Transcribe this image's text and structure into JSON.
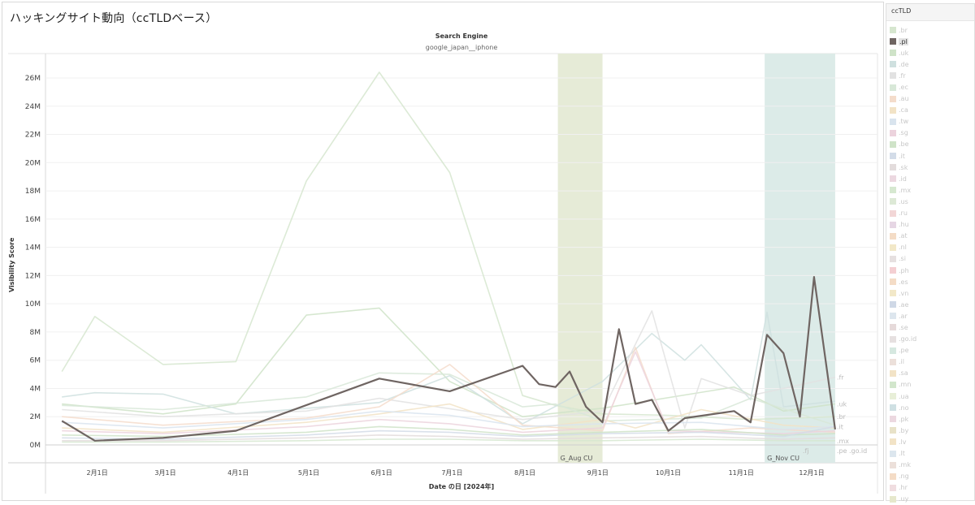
{
  "page": {
    "title": "ハッキングサイト動向（ccTLDベース）"
  },
  "chart_data": {
    "type": "line",
    "header_label": "Search Engine",
    "header_value": "google_japan__iphone",
    "xlabel": "Date の日 [2024年]",
    "ylabel": "Visibility Score",
    "ylim": [
      0,
      27000000
    ],
    "yticks": [
      0,
      2000000,
      4000000,
      6000000,
      8000000,
      10000000,
      12000000,
      14000000,
      16000000,
      18000000,
      20000000,
      22000000,
      24000000,
      26000000
    ],
    "ytick_labels": [
      "0M",
      "2M",
      "4M",
      "6M",
      "8M",
      "10M",
      "12M",
      "14M",
      "16M",
      "18M",
      "20M",
      "22M",
      "24M",
      "26M"
    ],
    "x_ticks": [
      {
        "date": "2024-02-01",
        "label": "2月1日"
      },
      {
        "date": "2024-03-01",
        "label": "3月1日"
      },
      {
        "date": "2024-04-01",
        "label": "4月1日"
      },
      {
        "date": "2024-05-01",
        "label": "5月1日"
      },
      {
        "date": "2024-06-01",
        "label": "6月1日"
      },
      {
        "date": "2024-07-01",
        "label": "7月1日"
      },
      {
        "date": "2024-08-01",
        "label": "8月1日"
      },
      {
        "date": "2024-09-01",
        "label": "9月1日"
      },
      {
        "date": "2024-10-01",
        "label": "10月1日"
      },
      {
        "date": "2024-11-01",
        "label": "11月1日"
      },
      {
        "date": "2024-12-01",
        "label": "12月1日"
      }
    ],
    "xlim": [
      "2024-01-10",
      "2024-12-29"
    ],
    "bands": [
      {
        "label": "G_Aug CU",
        "start": "2024-08-15",
        "end": "2024-09-03",
        "color": "#e6ebd7"
      },
      {
        "label": "G_Nov CU",
        "start": "2024-11-11",
        "end": "2024-12-11",
        "color": "#dcebe8"
      }
    ],
    "highlight": ".pl",
    "series": [
      {
        "name": ".pl",
        "color": "#6f6562",
        "points": [
          [
            "2024-01-17",
            1700000
          ],
          [
            "2024-01-31",
            300000
          ],
          [
            "2024-02-29",
            500000
          ],
          [
            "2024-03-31",
            1000000
          ],
          [
            "2024-05-31",
            4700000
          ],
          [
            "2024-06-30",
            3800000
          ],
          [
            "2024-07-31",
            5600000
          ],
          [
            "2024-08-07",
            4300000
          ],
          [
            "2024-08-14",
            4100000
          ],
          [
            "2024-08-20",
            5200000
          ],
          [
            "2024-08-27",
            2700000
          ],
          [
            "2024-09-03",
            1600000
          ],
          [
            "2024-09-10",
            8200000
          ],
          [
            "2024-09-17",
            2900000
          ],
          [
            "2024-09-24",
            3200000
          ],
          [
            "2024-10-01",
            1000000
          ],
          [
            "2024-10-08",
            1900000
          ],
          [
            "2024-10-29",
            2400000
          ],
          [
            "2024-11-05",
            1600000
          ],
          [
            "2024-11-12",
            7800000
          ],
          [
            "2024-11-19",
            6500000
          ],
          [
            "2024-11-26",
            2000000
          ],
          [
            "2024-12-02",
            11900000
          ],
          [
            "2024-12-11",
            1100000
          ]
        ]
      },
      {
        "name": ".br",
        "color": "#d6e6cf",
        "points": [
          [
            "2024-01-17",
            5200000
          ],
          [
            "2024-01-31",
            9100000
          ],
          [
            "2024-02-29",
            5700000
          ],
          [
            "2024-03-31",
            5900000
          ],
          [
            "2024-04-30",
            18700000
          ],
          [
            "2024-05-31",
            26400000
          ],
          [
            "2024-06-30",
            19300000
          ],
          [
            "2024-07-31",
            3500000
          ],
          [
            "2024-08-14",
            2800000
          ],
          [
            "2024-09-03",
            2200000
          ],
          [
            "2024-10-01",
            2100000
          ],
          [
            "2024-11-05",
            1800000
          ],
          [
            "2024-12-11",
            2000000
          ]
        ]
      },
      {
        "name": ".uk",
        "color": "#cfe3c8",
        "points": [
          [
            "2024-01-17",
            2900000
          ],
          [
            "2024-02-29",
            2200000
          ],
          [
            "2024-03-31",
            2900000
          ],
          [
            "2024-04-30",
            9200000
          ],
          [
            "2024-05-31",
            9700000
          ],
          [
            "2024-06-30",
            4500000
          ],
          [
            "2024-07-31",
            2000000
          ],
          [
            "2024-09-03",
            2600000
          ],
          [
            "2024-10-29",
            4100000
          ],
          [
            "2024-11-19",
            2400000
          ],
          [
            "2024-12-11",
            2900000
          ]
        ]
      },
      {
        "name": ".de",
        "color": "#cfe0df",
        "points": [
          [
            "2024-01-17",
            3400000
          ],
          [
            "2024-01-31",
            3700000
          ],
          [
            "2024-02-29",
            3600000
          ],
          [
            "2024-03-31",
            2200000
          ],
          [
            "2024-05-31",
            3000000
          ],
          [
            "2024-06-30",
            4900000
          ],
          [
            "2024-07-31",
            1500000
          ],
          [
            "2024-09-03",
            4500000
          ],
          [
            "2024-09-24",
            7900000
          ],
          [
            "2024-10-08",
            6000000
          ],
          [
            "2024-10-15",
            7100000
          ],
          [
            "2024-11-05",
            3200000
          ],
          [
            "2024-11-12",
            9400000
          ],
          [
            "2024-11-19",
            2700000
          ],
          [
            "2024-12-11",
            3100000
          ]
        ]
      },
      {
        "name": ".fr",
        "color": "#e2e2e2",
        "points": [
          [
            "2024-01-17",
            2500000
          ],
          [
            "2024-02-29",
            2000000
          ],
          [
            "2024-04-30",
            2400000
          ],
          [
            "2024-05-31",
            3300000
          ],
          [
            "2024-07-31",
            1800000
          ],
          [
            "2024-09-03",
            2400000
          ],
          [
            "2024-09-24",
            9500000
          ],
          [
            "2024-10-08",
            1200000
          ],
          [
            "2024-10-15",
            4700000
          ],
          [
            "2024-11-05",
            3500000
          ],
          [
            "2024-12-11",
            4800000
          ]
        ]
      },
      {
        "name": ".ec",
        "color": "#d8e8d8",
        "points": [
          [
            "2024-01-17",
            2800000
          ],
          [
            "2024-02-29",
            2500000
          ],
          [
            "2024-04-30",
            3400000
          ],
          [
            "2024-05-31",
            5100000
          ],
          [
            "2024-06-30",
            5000000
          ],
          [
            "2024-07-31",
            2700000
          ],
          [
            "2024-08-14",
            2900000
          ],
          [
            "2024-09-03",
            1700000
          ],
          [
            "2024-10-15",
            1900000
          ],
          [
            "2024-11-05",
            3300000
          ],
          [
            "2024-12-11",
            1400000
          ]
        ]
      },
      {
        "name": ".au",
        "color": "#f4dccb",
        "points": [
          [
            "2024-01-17",
            2000000
          ],
          [
            "2024-02-29",
            1400000
          ],
          [
            "2024-04-30",
            1900000
          ],
          [
            "2024-05-31",
            2700000
          ],
          [
            "2024-06-30",
            5700000
          ],
          [
            "2024-07-31",
            1400000
          ],
          [
            "2024-09-03",
            1000000
          ],
          [
            "2024-09-17",
            6900000
          ],
          [
            "2024-10-01",
            800000
          ],
          [
            "2024-11-05",
            1200000
          ],
          [
            "2024-12-11",
            900000
          ]
        ]
      },
      {
        "name": ".ca",
        "color": "#f2e3c6",
        "points": [
          [
            "2024-01-17",
            1200000
          ],
          [
            "2024-02-29",
            900000
          ],
          [
            "2024-04-30",
            1600000
          ],
          [
            "2024-05-31",
            2200000
          ],
          [
            "2024-06-30",
            2900000
          ],
          [
            "2024-07-31",
            1100000
          ],
          [
            "2024-09-03",
            1800000
          ],
          [
            "2024-09-17",
            1200000
          ],
          [
            "2024-10-15",
            2500000
          ],
          [
            "2024-11-19",
            1400000
          ],
          [
            "2024-12-11",
            1200000
          ]
        ]
      },
      {
        "name": ".tw",
        "color": "#d9e4ee",
        "points": [
          [
            "2024-01-17",
            1600000
          ],
          [
            "2024-02-29",
            1200000
          ],
          [
            "2024-04-30",
            1800000
          ],
          [
            "2024-05-31",
            2400000
          ],
          [
            "2024-06-30",
            2100000
          ],
          [
            "2024-07-31",
            1300000
          ],
          [
            "2024-09-03",
            1500000
          ],
          [
            "2024-10-15",
            1600000
          ],
          [
            "2024-11-19",
            1100000
          ],
          [
            "2024-12-11",
            1300000
          ]
        ]
      },
      {
        "name": ".sg",
        "color": "#ecd3dd",
        "points": [
          [
            "2024-01-17",
            1000000
          ],
          [
            "2024-02-29",
            800000
          ],
          [
            "2024-04-30",
            1300000
          ],
          [
            "2024-05-31",
            1800000
          ],
          [
            "2024-06-30",
            1500000
          ],
          [
            "2024-07-31",
            900000
          ],
          [
            "2024-09-03",
            1200000
          ],
          [
            "2024-09-17",
            6600000
          ],
          [
            "2024-10-01",
            1000000
          ],
          [
            "2024-11-19",
            800000
          ],
          [
            "2024-12-11",
            1000000
          ]
        ]
      },
      {
        "name": ".be",
        "color": "#cfe3c8",
        "points": [
          [
            "2024-01-17",
            700000
          ],
          [
            "2024-02-29",
            600000
          ],
          [
            "2024-04-30",
            900000
          ],
          [
            "2024-05-31",
            1300000
          ],
          [
            "2024-06-30",
            1100000
          ],
          [
            "2024-07-31",
            700000
          ],
          [
            "2024-09-03",
            900000
          ],
          [
            "2024-10-15",
            1100000
          ],
          [
            "2024-11-19",
            700000
          ],
          [
            "2024-12-11",
            800000
          ]
        ]
      },
      {
        "name": ".it",
        "color": "#d3dce8",
        "points": [
          [
            "2024-01-17",
            500000
          ],
          [
            "2024-02-29",
            400000
          ],
          [
            "2024-04-30",
            700000
          ],
          [
            "2024-05-31",
            1000000
          ],
          [
            "2024-06-30",
            900000
          ],
          [
            "2024-07-31",
            600000
          ],
          [
            "2024-09-03",
            800000
          ],
          [
            "2024-10-15",
            900000
          ],
          [
            "2024-11-19",
            600000
          ],
          [
            "2024-12-11",
            1300000
          ]
        ]
      },
      {
        "name": ".sk",
        "color": "#e3dcdc",
        "points": [
          [
            "2024-01-17",
            300000
          ],
          [
            "2024-02-29",
            300000
          ],
          [
            "2024-04-30",
            500000
          ],
          [
            "2024-05-31",
            700000
          ],
          [
            "2024-06-30",
            600000
          ],
          [
            "2024-07-31",
            400000
          ],
          [
            "2024-09-03",
            500000
          ],
          [
            "2024-10-15",
            600000
          ],
          [
            "2024-11-19",
            400000
          ],
          [
            "2024-12-11",
            500000
          ]
        ]
      },
      {
        "name": ".mx",
        "color": "#d6e8d0",
        "points": [
          [
            "2024-01-17",
            200000
          ],
          [
            "2024-02-29",
            200000
          ],
          [
            "2024-04-30",
            300000
          ],
          [
            "2024-05-31",
            400000
          ],
          [
            "2024-06-30",
            400000
          ],
          [
            "2024-07-31",
            300000
          ],
          [
            "2024-09-03",
            300000
          ],
          [
            "2024-10-15",
            400000
          ],
          [
            "2024-11-19",
            300000
          ],
          [
            "2024-12-11",
            300000
          ]
        ]
      }
    ],
    "end_labels": [
      {
        "text": ".fr",
        "value": 4800000
      },
      {
        "text": ".uk",
        "value": 2900000
      },
      {
        "text": ".br",
        "value": 2000000
      },
      {
        "text": ".it",
        "value": 1300000
      },
      {
        "text": ".mx",
        "value": 300000
      },
      {
        "text": ".fj",
        "value": -500000
      },
      {
        "text": ".pe .go.id",
        "value": -500000
      }
    ]
  },
  "legend": {
    "title": "ccTLD",
    "items": [
      {
        "label": ".br",
        "color": "#d6e6cf"
      },
      {
        "label": ".pl",
        "color": "#6f6562",
        "active": true
      },
      {
        "label": ".uk",
        "color": "#cfe3c8"
      },
      {
        "label": ".de",
        "color": "#cfe0df"
      },
      {
        "label": ".fr",
        "color": "#e2e2e2"
      },
      {
        "label": ".ec",
        "color": "#d8e8d8"
      },
      {
        "label": ".au",
        "color": "#f4dccb"
      },
      {
        "label": ".ca",
        "color": "#f2e3c6"
      },
      {
        "label": ".tw",
        "color": "#d9e4ee"
      },
      {
        "label": ".sg",
        "color": "#ecd3dd"
      },
      {
        "label": ".be",
        "color": "#cfe3c8"
      },
      {
        "label": ".it",
        "color": "#d3dce8"
      },
      {
        "label": ".sk",
        "color": "#e3dcdc"
      },
      {
        "label": ".id",
        "color": "#ecd8e0"
      },
      {
        "label": ".mx",
        "color": "#d6e8d0"
      },
      {
        "label": ".us",
        "color": "#dde9d6"
      },
      {
        "label": ".ru",
        "color": "#f2d6d6"
      },
      {
        "label": ".hu",
        "color": "#e6d6e4"
      },
      {
        "label": ".at",
        "color": "#f4dcc6"
      },
      {
        "label": ".nl",
        "color": "#f2e8c8"
      },
      {
        "label": ".si",
        "color": "#e6e0e0"
      },
      {
        "label": ".ph",
        "color": "#f4cfd2"
      },
      {
        "label": ".es",
        "color": "#f4dcc6"
      },
      {
        "label": ".vn",
        "color": "#f2e8c8"
      },
      {
        "label": ".ae",
        "color": "#cfd8e6"
      },
      {
        "label": ".ar",
        "color": "#dde6ee"
      },
      {
        "label": ".se",
        "color": "#e6dada"
      },
      {
        "label": ".go.id",
        "color": "#e6e0e0"
      },
      {
        "label": ".pe",
        "color": "#d6e8e0"
      },
      {
        "label": ".il",
        "color": "#ece0da"
      },
      {
        "label": ".sa",
        "color": "#f2e3c6"
      },
      {
        "label": ".mn",
        "color": "#d2e6cc"
      },
      {
        "label": ".ua",
        "color": "#e8efd8"
      },
      {
        "label": ".no",
        "color": "#cfe0e3"
      },
      {
        "label": ".pk",
        "color": "#ecd8e0"
      },
      {
        "label": ".by",
        "color": "#e8e2c8"
      },
      {
        "label": ".lv",
        "color": "#f2e3c6"
      },
      {
        "label": ".lt",
        "color": "#dce6ee"
      },
      {
        "label": ".mk",
        "color": "#ece0da"
      },
      {
        "label": ".ng",
        "color": "#f4dcc6"
      },
      {
        "label": ".hr",
        "color": "#f0dde0"
      },
      {
        "label": ".uy",
        "color": "#e6e8cc"
      }
    ]
  }
}
